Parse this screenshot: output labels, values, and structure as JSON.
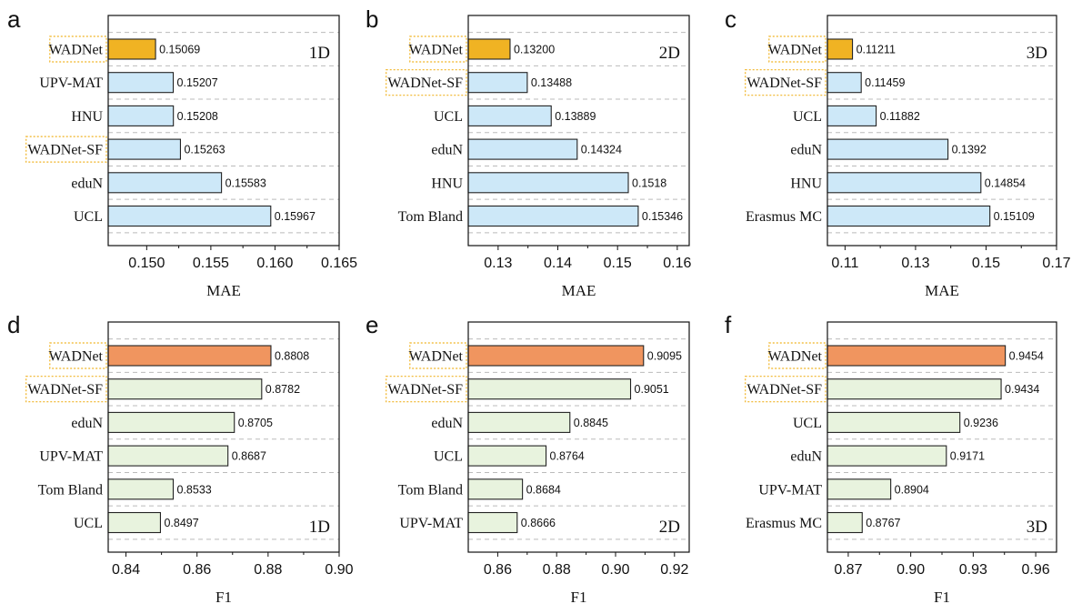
{
  "colors": {
    "best_bar_mae": "#f0b323",
    "best_bar_f1": "#f0955f",
    "other_bar_mae": "#cde8f8",
    "other_bar_f1": "#e8f3de",
    "highlight_box": "#f0b323",
    "grid": "#bbbbbb"
  },
  "chart_data": [
    {
      "panel": "a",
      "type": "bar",
      "orientation": "horizontal",
      "tag": "1D",
      "xlabel": "MAE",
      "xlim": [
        0.147,
        0.165
      ],
      "xticks": [
        "0.150",
        "0.155",
        "0.160",
        "0.165"
      ],
      "categories": [
        "WADNet",
        "UPV-MAT",
        "HNU",
        "WADNet-SF",
        "eduN",
        "UCL"
      ],
      "values": [
        0.15069,
        0.15207,
        0.15208,
        0.15263,
        0.15583,
        0.15967
      ],
      "value_labels": [
        "0.15069",
        "0.15207",
        "0.15208",
        "0.15263",
        "0.15583",
        "0.15967"
      ],
      "highlighted": [
        "WADNet",
        "WADNet-SF"
      ],
      "best": "WADNet",
      "grid": "horizontal dashed",
      "tag_position": "top-right"
    },
    {
      "panel": "b",
      "type": "bar",
      "orientation": "horizontal",
      "tag": "2D",
      "xlabel": "MAE",
      "xlim": [
        0.125,
        0.162
      ],
      "xticks": [
        "0.13",
        "0.14",
        "0.15",
        "0.16"
      ],
      "categories": [
        "WADNet",
        "WADNet-SF",
        "UCL",
        "eduN",
        "HNU",
        "Tom Bland"
      ],
      "values": [
        0.132,
        0.13488,
        0.13889,
        0.14324,
        0.1518,
        0.15346
      ],
      "value_labels": [
        "0.13200",
        "0.13488",
        "0.13889",
        "0.14324",
        "0.1518",
        "0.15346"
      ],
      "highlighted": [
        "WADNet",
        "WADNet-SF"
      ],
      "best": "WADNet",
      "grid": "horizontal dashed",
      "tag_position": "top-right"
    },
    {
      "panel": "c",
      "type": "bar",
      "orientation": "horizontal",
      "tag": "3D",
      "xlabel": "MAE",
      "xlim": [
        0.105,
        0.17
      ],
      "xticks": [
        "0.11",
        "0.13",
        "0.15",
        "0.17"
      ],
      "categories": [
        "WADNet",
        "WADNet-SF",
        "UCL",
        "eduN",
        "HNU",
        "Erasmus MC"
      ],
      "values": [
        0.11211,
        0.11459,
        0.11882,
        0.1392,
        0.14854,
        0.15109
      ],
      "value_labels": [
        "0.11211",
        "0.11459",
        "0.11882",
        "0.1392",
        "0.14854",
        "0.15109"
      ],
      "highlighted": [
        "WADNet",
        "WADNet-SF"
      ],
      "best": "WADNet",
      "grid": "horizontal dashed",
      "tag_position": "top-right"
    },
    {
      "panel": "d",
      "type": "bar",
      "orientation": "horizontal",
      "tag": "1D",
      "xlabel": "F1",
      "xlim": [
        0.835,
        0.9
      ],
      "xticks": [
        "0.84",
        "0.86",
        "0.88",
        "0.90"
      ],
      "categories": [
        "WADNet",
        "WADNet-SF",
        "eduN",
        "UPV-MAT",
        "Tom Bland",
        "UCL"
      ],
      "values": [
        0.8808,
        0.8782,
        0.8705,
        0.8687,
        0.8533,
        0.8497
      ],
      "value_labels": [
        "0.8808",
        "0.8782",
        "0.8705",
        "0.8687",
        "0.8533",
        "0.8497"
      ],
      "highlighted": [
        "WADNet",
        "WADNet-SF"
      ],
      "best": "WADNet",
      "grid": "horizontal dashed",
      "tag_position": "bottom-right"
    },
    {
      "panel": "e",
      "type": "bar",
      "orientation": "horizontal",
      "tag": "2D",
      "xlabel": "F1",
      "xlim": [
        0.85,
        0.925
      ],
      "xticks": [
        "0.86",
        "0.88",
        "0.90",
        "0.92"
      ],
      "categories": [
        "WADNet",
        "WADNet-SF",
        "eduN",
        "UCL",
        "Tom Bland",
        "UPV-MAT"
      ],
      "values": [
        0.9095,
        0.9051,
        0.8845,
        0.8764,
        0.8684,
        0.8666
      ],
      "value_labels": [
        "0.9095",
        "0.9051",
        "0.8845",
        "0.8764",
        "0.8684",
        "0.8666"
      ],
      "highlighted": [
        "WADNet",
        "WADNet-SF"
      ],
      "best": "WADNet",
      "grid": "horizontal dashed",
      "tag_position": "bottom-right"
    },
    {
      "panel": "f",
      "type": "bar",
      "orientation": "horizontal",
      "tag": "3D",
      "xlabel": "F1",
      "xlim": [
        0.86,
        0.97
      ],
      "xticks": [
        "0.87",
        "0.90",
        "0.93",
        "0.96"
      ],
      "categories": [
        "WADNet",
        "WADNet-SF",
        "UCL",
        "eduN",
        "UPV-MAT",
        "Erasmus MC"
      ],
      "values": [
        0.9454,
        0.9434,
        0.9236,
        0.9171,
        0.8904,
        0.8767
      ],
      "value_labels": [
        "0.9454",
        "0.9434",
        "0.9236",
        "0.9171",
        "0.8904",
        "0.8767"
      ],
      "highlighted": [
        "WADNet",
        "WADNet-SF"
      ],
      "best": "WADNet",
      "grid": "horizontal dashed",
      "tag_position": "bottom-right"
    }
  ]
}
